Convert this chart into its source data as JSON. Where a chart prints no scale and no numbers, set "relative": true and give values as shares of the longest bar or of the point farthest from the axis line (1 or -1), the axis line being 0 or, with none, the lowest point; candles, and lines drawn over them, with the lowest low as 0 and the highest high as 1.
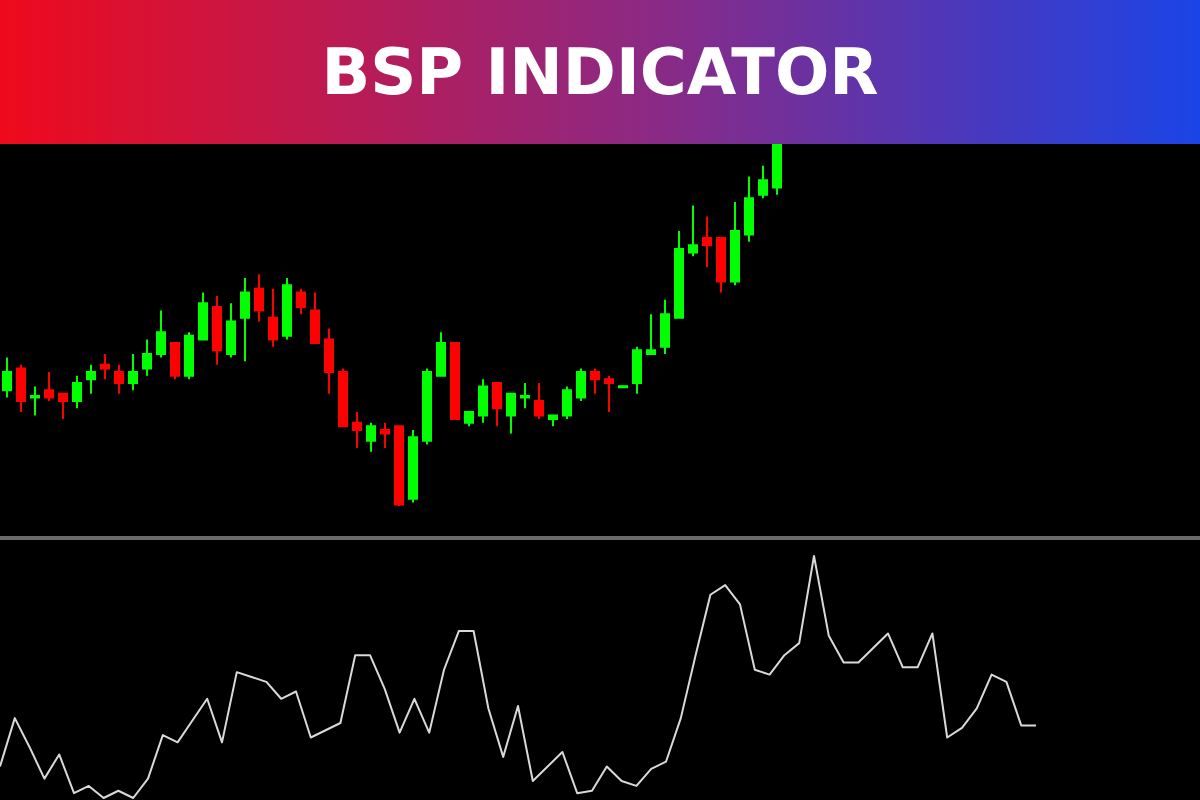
{
  "chart_data": [
    {
      "type": "candlestick",
      "title": "BSP INDICATOR",
      "relative": true,
      "categories": [
        null,
        null,
        null,
        null,
        null,
        null,
        null,
        null,
        null,
        null,
        null,
        null,
        null,
        null,
        null,
        null,
        null,
        null,
        null,
        null,
        null,
        null,
        null,
        null,
        null,
        null,
        null,
        null,
        null,
        null,
        null,
        null,
        null,
        null,
        null,
        null,
        null,
        null,
        null,
        null,
        null,
        null,
        null,
        null,
        null,
        null,
        null,
        null,
        null,
        null,
        null,
        null,
        null,
        null,
        null,
        null
      ],
      "ohlc": [
        [
          0.32,
          0.41,
          0.3,
          0.37
        ],
        [
          0.38,
          0.39,
          0.26,
          0.29
        ],
        [
          0.3,
          0.33,
          0.25,
          0.304
        ],
        [
          0.32,
          0.37,
          0.29,
          0.3
        ],
        [
          0.31,
          0.31,
          0.24,
          0.29
        ],
        [
          0.29,
          0.36,
          0.27,
          0.34
        ],
        [
          0.35,
          0.39,
          0.31,
          0.37
        ],
        [
          0.39,
          0.42,
          0.35,
          0.38
        ],
        [
          0.37,
          0.39,
          0.31,
          0.34
        ],
        [
          0.34,
          0.42,
          0.32,
          0.37
        ],
        [
          0.38,
          0.46,
          0.36,
          0.42
        ],
        [
          0.42,
          0.54,
          0.41,
          0.48
        ],
        [
          0.45,
          0.45,
          0.35,
          0.36
        ],
        [
          0.36,
          0.48,
          0.35,
          0.47
        ],
        [
          0.46,
          0.59,
          0.46,
          0.56
        ],
        [
          0.55,
          0.58,
          0.39,
          0.43
        ],
        [
          0.42,
          0.56,
          0.41,
          0.51
        ],
        [
          0.52,
          0.63,
          0.4,
          0.59
        ],
        [
          0.6,
          0.64,
          0.51,
          0.54
        ],
        [
          0.52,
          0.6,
          0.44,
          0.46
        ],
        [
          0.47,
          0.63,
          0.46,
          0.61
        ],
        [
          0.59,
          0.6,
          0.53,
          0.55
        ],
        [
          0.54,
          0.59,
          0.45,
          0.45
        ],
        [
          0.46,
          0.49,
          0.31,
          0.37
        ],
        [
          0.37,
          0.38,
          0.22,
          0.22
        ],
        [
          0.23,
          0.26,
          0.16,
          0.21
        ],
        [
          0.18,
          0.23,
          0.15,
          0.22
        ],
        [
          0.21,
          0.23,
          0.16,
          0.2
        ],
        [
          0.22,
          0.22,
          0,
          0.004
        ],
        [
          0.02,
          0.21,
          0.01,
          0.19
        ],
        [
          0.18,
          0.38,
          0.17,
          0.37
        ],
        [
          0.36,
          0.48,
          0.36,
          0.45
        ],
        [
          0.45,
          0.45,
          0.24,
          0.24
        ],
        [
          0.23,
          0.26,
          0.22,
          0.26
        ],
        [
          0.25,
          0.35,
          0.23,
          0.33
        ],
        [
          0.34,
          0.34,
          0.22,
          0.27
        ],
        [
          0.25,
          0.31,
          0.2,
          0.31
        ],
        [
          0.3,
          0.34,
          0.27,
          0.304
        ],
        [
          0.29,
          0.34,
          0.24,
          0.25
        ],
        [
          0.24,
          0.25,
          0.22,
          0.25
        ],
        [
          0.25,
          0.33,
          0.24,
          0.32
        ],
        [
          0.3,
          0.38,
          0.29,
          0.37
        ],
        [
          0.37,
          0.38,
          0.31,
          0.35
        ],
        [
          0.35,
          0.36,
          0.26,
          0.34
        ],
        [
          0.328,
          0.331,
          0.328,
          0.331
        ],
        [
          0.34,
          0.44,
          0.31,
          0.43
        ],
        [
          0.42,
          0.53,
          0.42,
          0.43
        ],
        [
          0.44,
          0.57,
          0.42,
          0.53
        ],
        [
          0.52,
          0.76,
          0.52,
          0.71
        ],
        [
          0.7,
          0.83,
          0.69,
          0.72
        ],
        [
          0.74,
          0.8,
          0.66,
          0.72
        ],
        [
          0.74,
          0.74,
          0.59,
          0.62
        ],
        [
          0.62,
          0.84,
          0.61,
          0.76
        ],
        [
          0.75,
          0.91,
          0.73,
          0.85
        ],
        [
          0.86,
          0.94,
          0.85,
          0.9
        ],
        [
          0.88,
          1,
          0.86,
          1
        ]
      ]
    },
    {
      "type": "line",
      "relative": true,
      "marker": "none",
      "categories": [
        null,
        null,
        null,
        null,
        null,
        null,
        null,
        null,
        null,
        null,
        null,
        null,
        null,
        null,
        null,
        null,
        null,
        null,
        null,
        null,
        null,
        null,
        null,
        null,
        null,
        null,
        null,
        null,
        null,
        null,
        null,
        null,
        null,
        null,
        null,
        null,
        null,
        null,
        null,
        null,
        null,
        null,
        null,
        null,
        null,
        null,
        null,
        null,
        null,
        null,
        null,
        null,
        null,
        null,
        null,
        null,
        null,
        null,
        null,
        null,
        null,
        null,
        null,
        null,
        null,
        null,
        null,
        null,
        null,
        null,
        null
      ],
      "series": [
        {
          "color": "#d9d9d9",
          "values": [
            0.13,
            0.33,
            0.21,
            0.08,
            0.18,
            0.02,
            0.05,
            0,
            0.03,
            0,
            0.08,
            0.26,
            0.23,
            0.32,
            0.41,
            0.23,
            0.52,
            0.5,
            0.48,
            0.41,
            0.44,
            0.25,
            0.28,
            0.31,
            0.59,
            0.59,
            0.45,
            0.27,
            0.41,
            0.27,
            0.53,
            0.69,
            0.69,
            0.37,
            0.17,
            0.38,
            0.07,
            0.13,
            0.19,
            0.02,
            0.03,
            0.13,
            0.07,
            0.05,
            0.12,
            0.15,
            0.33,
            0.59,
            0.84,
            0.88,
            0.8,
            0.53,
            0.51,
            0.59,
            0.64,
            1,
            0.67,
            0.56,
            0.56,
            0.62,
            0.68,
            0.54,
            0.54,
            0.68,
            0.25,
            0.29,
            0.37,
            0.51,
            0.48,
            0.3,
            0.3
          ]
        }
      ]
    }
  ]
}
